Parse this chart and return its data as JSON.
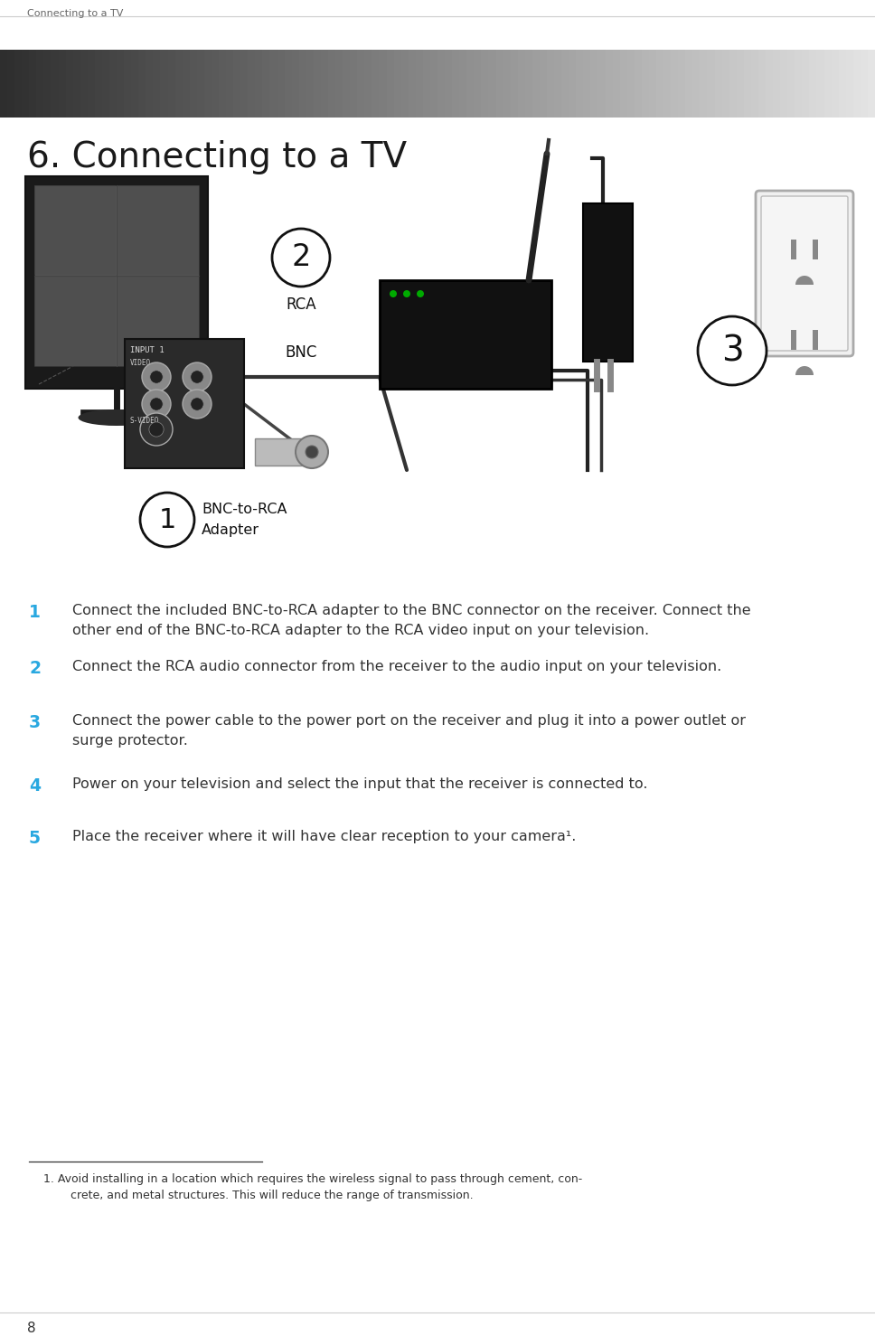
{
  "page_title": "Connecting to a TV",
  "section_title": "6. Connecting to a TV",
  "page_number": "8",
  "background_color": "#ffffff",
  "text_color": "#333333",
  "step_number_color": "#29a8e0",
  "steps": [
    {
      "num": "1",
      "line1": "Connect the included BNC-to-RCA adapter to the BNC connector on the receiver. Connect the",
      "line2": "other end of the BNC-to-RCA adapter to the RCA video input on your television."
    },
    {
      "num": "2",
      "line1": "Connect the RCA audio connector from the receiver to the audio input on your television.",
      "line2": ""
    },
    {
      "num": "3",
      "line1": "Connect the power cable to the power port on the receiver and plug it into a power outlet or",
      "line2": "surge protector."
    },
    {
      "num": "4",
      "line1": "Power on your television and select the input that the receiver is connected to.",
      "line2": ""
    },
    {
      "num": "5",
      "line1": "Place the receiver where it will have clear reception to your camera¹.",
      "line2": ""
    }
  ],
  "footnote_line1": "1. Avoid installing in a location which requires the wireless signal to pass through cement, con-",
  "footnote_line2": "    crete, and metal structures. This will reduce the range of transmission."
}
